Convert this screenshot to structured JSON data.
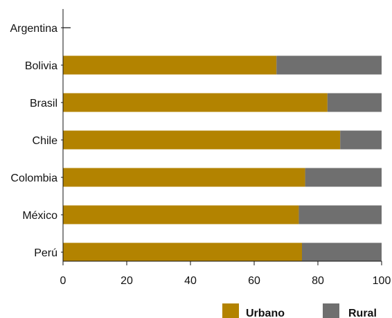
{
  "colors": {
    "urbano": "#b38300",
    "rural": "#6f6f6f",
    "axis": "#111111"
  },
  "legend": {
    "urbano_label": "Urbano",
    "rural_label": "Rural",
    "placement": "bottom-right"
  },
  "chart_data": {
    "type": "bar",
    "orientation": "horizontal",
    "stacked": true,
    "title": "",
    "xlabel": "",
    "ylabel": "",
    "xlim": [
      0,
      100
    ],
    "x_ticks": [
      0,
      20,
      40,
      60,
      80,
      100
    ],
    "grid": false,
    "categories": [
      "Argentina",
      "Bolivia",
      "Brasil",
      "Chile",
      "Colombia",
      "México",
      "Perú"
    ],
    "series": [
      {
        "name": "Urbano",
        "values": [
          null,
          67,
          83,
          87,
          76,
          74,
          75
        ]
      },
      {
        "name": "Rural",
        "values": [
          null,
          33,
          17,
          13,
          24,
          26,
          25
        ]
      }
    ]
  }
}
